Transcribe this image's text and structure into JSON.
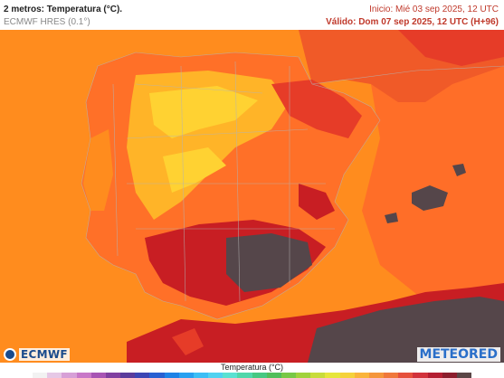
{
  "header": {
    "title": "2 metros: Temperatura (°C).",
    "model": "ECMWF HRES (0.1°)",
    "start": "Inicio: Mié 03 sep 2025, 12 UTC",
    "valid": "Válido: Dom 07 sep 2025, 12 UTC (H+96)"
  },
  "logos": {
    "left": "ECMWF",
    "right": "METEORED"
  },
  "legend": {
    "title": "Temperatura (°C)",
    "colors": [
      "#f2f2f2",
      "#e6c8e6",
      "#d7a0d7",
      "#c878c8",
      "#a855b4",
      "#8040a0",
      "#5a3c9c",
      "#3c46b4",
      "#2860d2",
      "#1e82e6",
      "#28a0f0",
      "#3cbef5",
      "#50d2f0",
      "#5ae1d2",
      "#50d7aa",
      "#46c882",
      "#50be5a",
      "#78c846",
      "#a0d23c",
      "#c8dc3c",
      "#e6e63c",
      "#f5d23c",
      "#fab43c",
      "#f5963c",
      "#f0783c",
      "#e6503c",
      "#d2323c",
      "#b41e32",
      "#8c1e2d",
      "#5a4646"
    ]
  },
  "map": {
    "colors": {
      "sea": "#ff8c1e",
      "sea_warm": "#ff6e28",
      "land_base": "#ff7028",
      "hot": "#e63c28",
      "very_hot": "#c81e23",
      "extreme": "#55464a",
      "plateau": "#ffb428",
      "mild": "#ffd232",
      "borders": "#b4b4b4"
    }
  }
}
